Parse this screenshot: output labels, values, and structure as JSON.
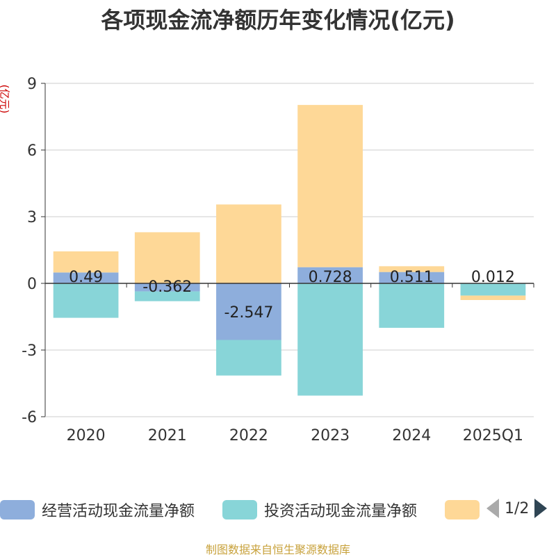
{
  "chart_data": {
    "type": "bar",
    "stacked": true,
    "title": "各项现金流净额历年变化情况(亿元)",
    "ylabel": "(亿元)",
    "ylim": [
      -6,
      9
    ],
    "yticks": [
      9,
      6,
      3,
      0,
      -3,
      -6
    ],
    "categories": [
      "2020",
      "2021",
      "2022",
      "2023",
      "2024",
      "2025Q1"
    ],
    "series": [
      {
        "name": "经营活动现金流量净额",
        "color": "#8eaedc",
        "values": [
          0.49,
          -0.362,
          -2.547,
          0.728,
          0.511,
          0.012
        ],
        "labels": [
          "0.49",
          "-0.362",
          "-2.547",
          "0.728",
          "0.511",
          "0.012"
        ]
      },
      {
        "name": "投资活动现金流量净额",
        "color": "#88d5d8",
        "values": [
          -1.55,
          -0.44,
          -1.6,
          -5.05,
          -2.0,
          -0.55
        ]
      },
      {
        "name": "",
        "color": "#fed897",
        "values": [
          0.95,
          2.3,
          3.55,
          7.3,
          0.26,
          -0.2
        ]
      }
    ]
  },
  "legend": {
    "page": "1/2"
  },
  "source": "制图数据来自恒生聚源数据库"
}
